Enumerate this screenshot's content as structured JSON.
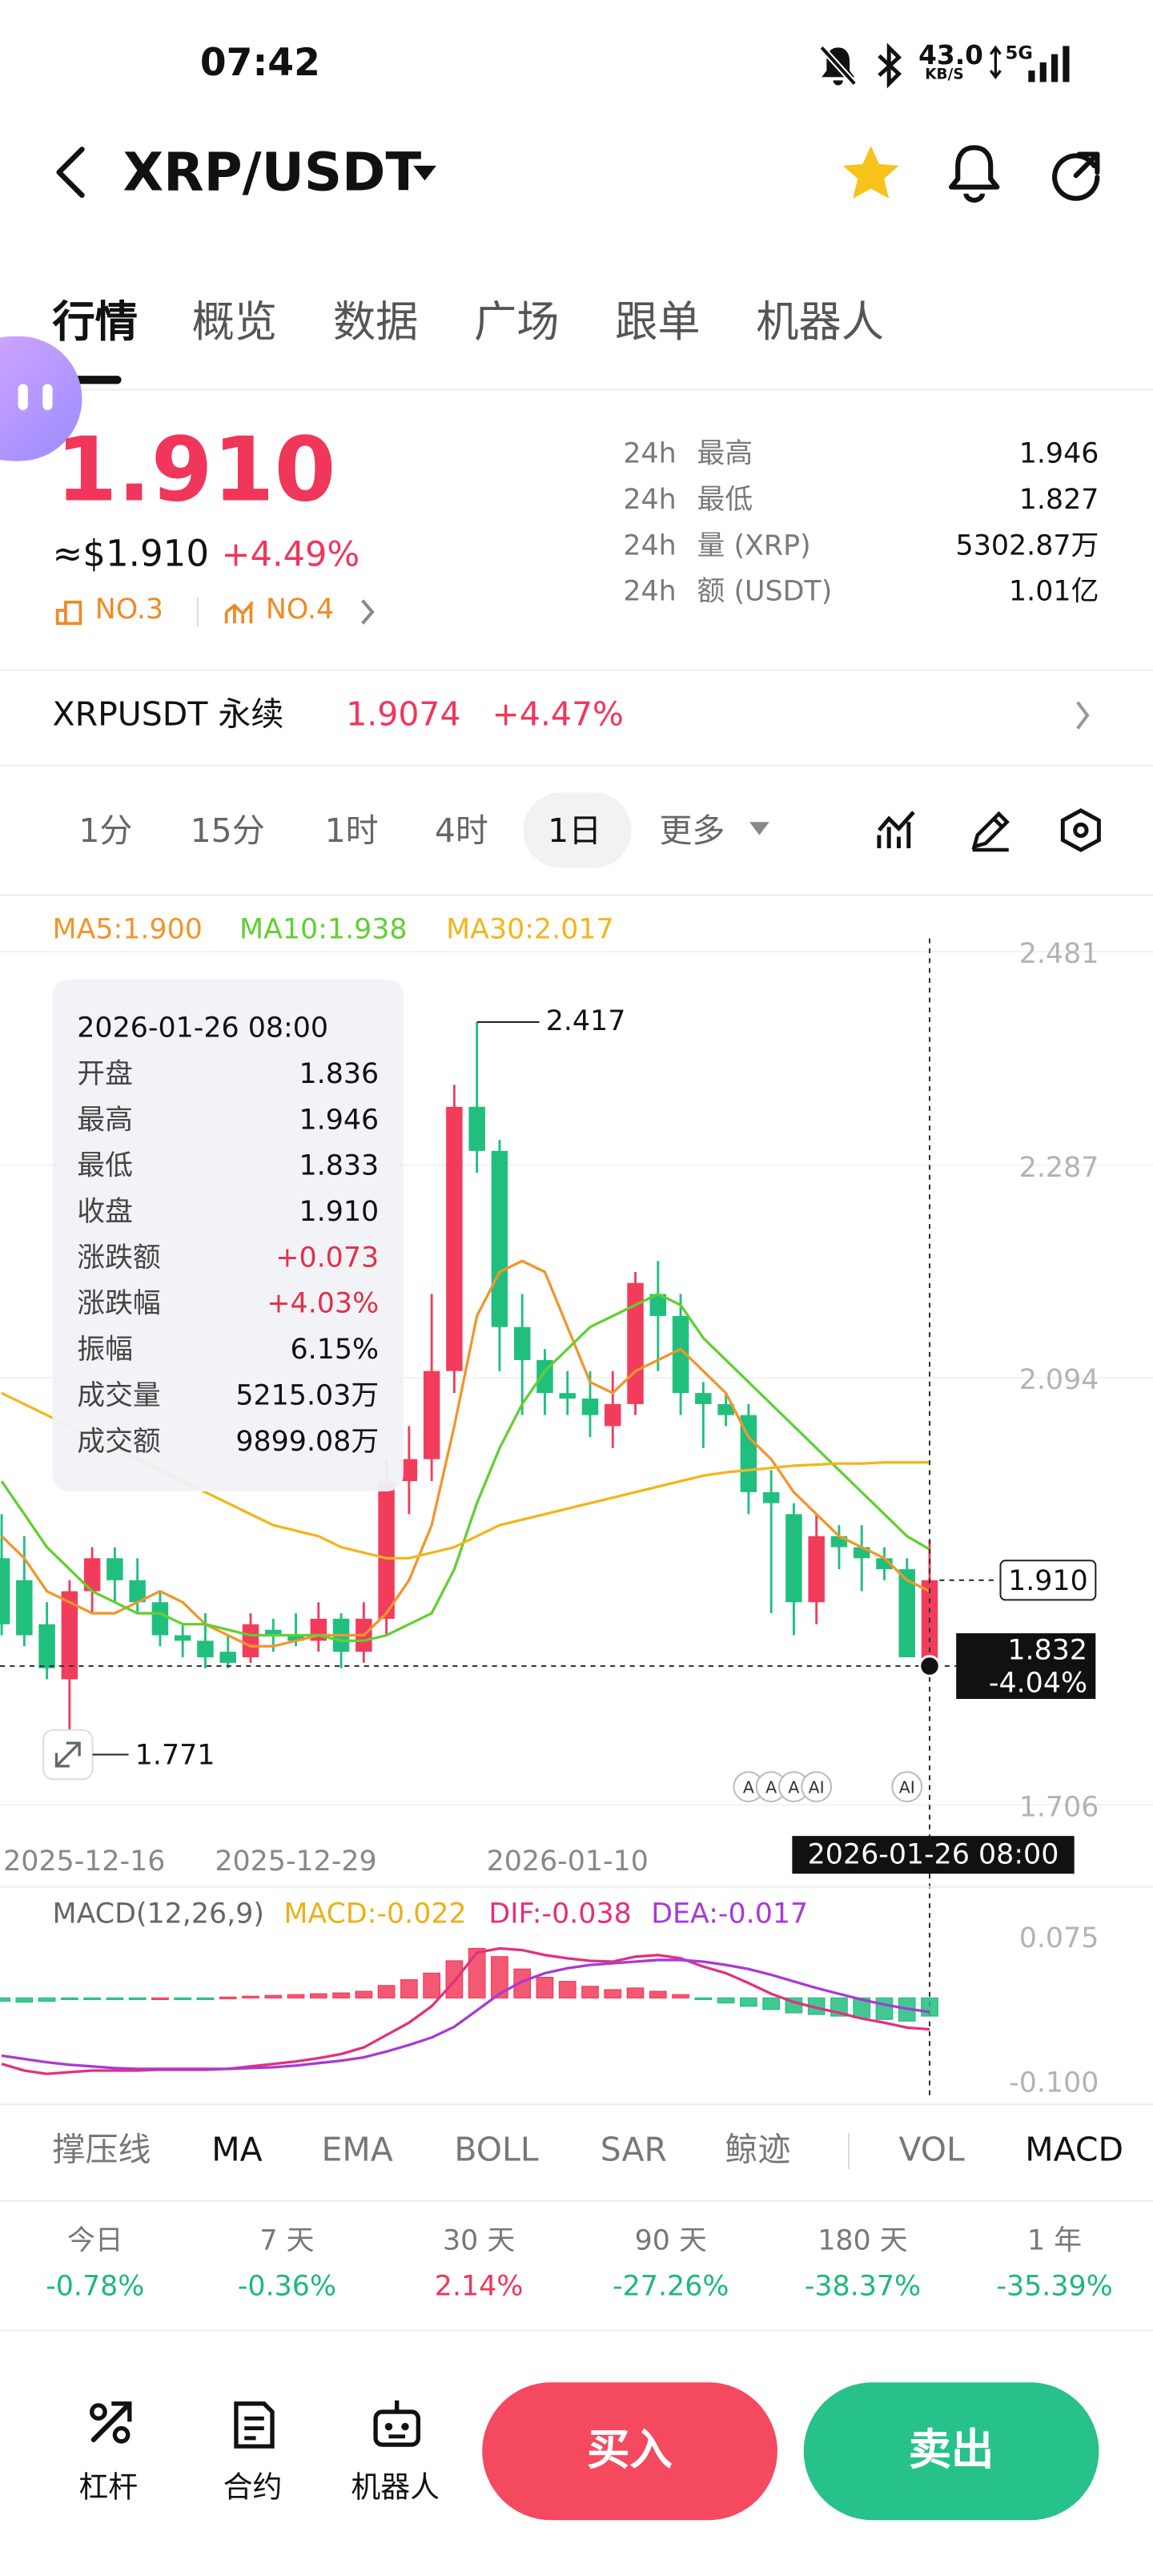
{
  "status_bar": {
    "time": "07:42",
    "speed": "43.0",
    "speed_unit": "KB/S",
    "network": "5G"
  },
  "header": {
    "pair": "XRP/USDT"
  },
  "tabs": [
    "行情",
    "概览",
    "数据",
    "广场",
    "跟单",
    "机器人"
  ],
  "price": {
    "last": "1.910",
    "usd": "≈$1.910",
    "change": "+4.49%",
    "rank1": "NO.3",
    "rank2": "NO.4",
    "stats": [
      [
        "24h",
        "最高",
        "1.946"
      ],
      [
        "24h",
        "最低",
        "1.827"
      ],
      [
        "24h",
        "量 (XRP)",
        "5302.87万"
      ],
      [
        "24h",
        "额 (USDT)",
        "1.01亿"
      ]
    ]
  },
  "perpetual": {
    "name": "XRPUSDT 永续",
    "price": "1.9074",
    "change": "+4.47%"
  },
  "intervals": [
    "1分",
    "15分",
    "1时",
    "4时",
    "1日",
    "更多"
  ],
  "chart_data": [
    {
      "type": "candlestick",
      "categories": [
        "2025-12-16",
        null,
        null,
        null,
        null,
        null,
        null,
        null,
        null,
        null,
        null,
        null,
        null,
        "2025-12-29",
        null,
        null,
        null,
        null,
        null,
        null,
        null,
        null,
        null,
        null,
        null,
        "2026-01-10",
        null,
        null,
        null,
        null,
        null,
        null,
        null,
        null,
        null,
        null,
        null,
        null,
        null,
        null,
        null,
        null
      ],
      "open": [
        1.93,
        1.91,
        1.87,
        1.82,
        1.9,
        1.93,
        1.91,
        1.89,
        1.86,
        1.855,
        1.845,
        1.84,
        1.865,
        1.86,
        1.855,
        1.875,
        1.845,
        1.875,
        2.0,
        2.02,
        2.1,
        2.34,
        2.3,
        2.14,
        2.11,
        2.08,
        2.075,
        2.05,
        2.07,
        2.17,
        2.15,
        2.08,
        2.07,
        2.06,
        1.99,
        1.97,
        1.89,
        1.95,
        1.94,
        1.93,
        1.92,
        1.836
      ],
      "high": [
        1.97,
        1.95,
        1.89,
        1.91,
        1.94,
        1.94,
        1.93,
        1.9,
        1.87,
        1.88,
        1.86,
        1.88,
        1.875,
        1.88,
        1.89,
        1.88,
        1.89,
        2.02,
        2.05,
        2.17,
        2.36,
        2.417,
        2.31,
        2.17,
        2.12,
        2.1,
        2.1,
        2.1,
        2.19,
        2.2,
        2.17,
        2.09,
        2.08,
        2.07,
        2.01,
        1.98,
        1.97,
        1.96,
        1.96,
        1.94,
        1.93,
        1.946
      ],
      "low": [
        1.86,
        1.85,
        1.82,
        1.771,
        1.88,
        1.89,
        1.88,
        1.85,
        1.84,
        1.83,
        1.83,
        1.835,
        1.845,
        1.85,
        1.845,
        1.83,
        1.835,
        1.86,
        1.97,
        2.0,
        2.08,
        2.28,
        2.1,
        2.06,
        2.06,
        2.06,
        2.04,
        2.03,
        2.06,
        2.1,
        2.06,
        2.03,
        2.05,
        1.97,
        1.88,
        1.86,
        1.87,
        1.92,
        1.9,
        1.91,
        1.84,
        1.833
      ],
      "close": [
        1.87,
        1.86,
        1.83,
        1.9,
        1.93,
        1.91,
        1.89,
        1.86,
        1.855,
        1.84,
        1.835,
        1.87,
        1.86,
        1.855,
        1.875,
        1.845,
        1.875,
        2.0,
        2.02,
        2.1,
        2.34,
        2.3,
        2.14,
        2.11,
        2.08,
        2.075,
        2.06,
        2.07,
        2.18,
        2.15,
        2.08,
        2.07,
        2.06,
        1.99,
        1.98,
        1.89,
        1.95,
        1.94,
        1.93,
        1.92,
        1.84,
        1.91
      ],
      "up_color": "#f23c5b",
      "down_color": "#20bf7e",
      "series": [
        {
          "name": "MA5:1.900",
          "color": "#f0962c",
          "values": [
            1.95,
            1.93,
            1.9,
            1.89,
            1.88,
            1.88,
            1.89,
            1.9,
            1.89,
            1.87,
            1.86,
            1.85,
            1.85,
            1.855,
            1.86,
            1.86,
            1.86,
            1.88,
            1.91,
            1.96,
            2.05,
            2.15,
            2.19,
            2.2,
            2.19,
            2.14,
            2.09,
            2.08,
            2.1,
            2.11,
            2.12,
            2.1,
            2.08,
            2.04,
            2.02,
            1.99,
            1.97,
            1.95,
            1.94,
            1.93,
            1.91,
            1.9
          ]
        },
        {
          "name": "MA10:1.938",
          "color": "#62cf34",
          "values": [
            2.0,
            1.97,
            1.94,
            1.92,
            1.9,
            1.89,
            1.88,
            1.88,
            1.87,
            1.87,
            1.865,
            1.86,
            1.86,
            1.86,
            1.86,
            1.855,
            1.855,
            1.86,
            1.87,
            1.88,
            1.92,
            1.98,
            2.03,
            2.07,
            2.1,
            2.12,
            2.14,
            2.15,
            2.16,
            2.17,
            2.16,
            2.13,
            2.11,
            2.09,
            2.07,
            2.05,
            2.03,
            2.01,
            1.99,
            1.97,
            1.95,
            1.938
          ]
        },
        {
          "name": "MA30:2.017",
          "color": "#f2b61c",
          "values": [
            2.08,
            2.07,
            2.06,
            2.05,
            2.04,
            2.03,
            2.02,
            2.01,
            2.0,
            1.99,
            1.98,
            1.97,
            1.96,
            1.955,
            1.95,
            1.94,
            1.935,
            1.93,
            1.93,
            1.935,
            1.94,
            1.95,
            1.96,
            1.965,
            1.97,
            1.975,
            1.98,
            1.985,
            1.99,
            1.995,
            2.0,
            2.005,
            2.008,
            2.01,
            2.012,
            2.014,
            2.015,
            2.016,
            2.016,
            2.017,
            2.017,
            2.017
          ]
        }
      ],
      "ylim": [
        1.706,
        2.481
      ],
      "yticks": [
        2.481,
        2.287,
        2.094,
        1.706
      ],
      "grid": true,
      "high_label": 2.417,
      "low_label": 1.771,
      "last_price": {
        "value": 1.91,
        "label": "1.910"
      },
      "crosshair": {
        "price": 1.832,
        "change": "-4.04%",
        "time": "2026-01-26 08:00"
      },
      "marker_labels": [
        null,
        null,
        null,
        null,
        null,
        null,
        null,
        null,
        null,
        null,
        null,
        null,
        null,
        null,
        null,
        null,
        null,
        null,
        null,
        null,
        null,
        null,
        null,
        null,
        null,
        null,
        null,
        null,
        null,
        null,
        null,
        null,
        null,
        "A",
        "A",
        "A",
        "AI",
        null,
        null,
        null,
        "AI",
        null
      ],
      "tooltip": {
        "time": "2026-01-26 08:00",
        "rows": [
          [
            "开盘",
            "1.836"
          ],
          [
            "最高",
            "1.946"
          ],
          [
            "最低",
            "1.833"
          ],
          [
            "收盘",
            "1.910"
          ],
          [
            "涨跌额",
            "+0.073"
          ],
          [
            "涨跌幅",
            "+4.03%"
          ],
          [
            "振幅",
            "6.15%"
          ],
          [
            "成交量",
            "5215.03万"
          ],
          [
            "成交额",
            "9899.08万"
          ]
        ]
      }
    },
    {
      "type": "macd",
      "title": "MACD(12,26,9)",
      "up_color": "#f23c5b",
      "down_color": "#20bf7e",
      "series": [
        {
          "name": "MACD:-0.022",
          "color": "#e9b11a",
          "type": "bar",
          "values": [
            -0.004,
            -0.005,
            -0.004,
            -0.002,
            -0.001,
            -0.001,
            -0.001,
            0,
            -0.001,
            -0.001,
            0.001,
            0.002,
            0.003,
            0.004,
            0.005,
            0.006,
            0.008,
            0.015,
            0.022,
            0.03,
            0.045,
            0.06,
            0.05,
            0.035,
            0.025,
            0.02,
            0.014,
            0.01,
            0.012,
            0.008,
            0.004,
            -0.002,
            -0.006,
            -0.01,
            -0.014,
            -0.018,
            -0.02,
            -0.022,
            -0.024,
            -0.026,
            -0.028,
            -0.022
          ]
        },
        {
          "name": "DIF:-0.038",
          "color": "#e2307f",
          "values": [
            -0.08,
            -0.088,
            -0.092,
            -0.09,
            -0.088,
            -0.088,
            -0.088,
            -0.087,
            -0.087,
            -0.087,
            -0.086,
            -0.083,
            -0.08,
            -0.077,
            -0.073,
            -0.068,
            -0.06,
            -0.045,
            -0.03,
            -0.01,
            0.02,
            0.055,
            0.06,
            0.058,
            0.052,
            0.048,
            0.045,
            0.044,
            0.05,
            0.052,
            0.048,
            0.038,
            0.03,
            0.018,
            0.005,
            -0.005,
            -0.012,
            -0.018,
            -0.025,
            -0.03,
            -0.036,
            -0.038
          ]
        },
        {
          "name": "DEA:-0.017",
          "color": "#a83ad3",
          "values": [
            -0.07,
            -0.074,
            -0.078,
            -0.081,
            -0.083,
            -0.085,
            -0.086,
            -0.086,
            -0.086,
            -0.086,
            -0.086,
            -0.085,
            -0.084,
            -0.082,
            -0.079,
            -0.076,
            -0.072,
            -0.065,
            -0.057,
            -0.048,
            -0.035,
            -0.015,
            0.005,
            0.02,
            0.03,
            0.036,
            0.04,
            0.042,
            0.044,
            0.046,
            0.046,
            0.044,
            0.04,
            0.035,
            0.028,
            0.02,
            0.012,
            0.005,
            -0.002,
            -0.008,
            -0.013,
            -0.017
          ]
        }
      ],
      "ylim": [
        -0.1,
        0.075
      ],
      "yticks": [
        0.075,
        {
          "value": -0.1,
          "label": "-0.100"
        }
      ]
    }
  ],
  "indicators": [
    "撑压线",
    "MA",
    "EMA",
    "BOLL",
    "SAR",
    "鲸迹",
    "VOL",
    "MACD"
  ],
  "periods": [
    {
      "label": "今日",
      "value": "-0.78%"
    },
    {
      "label": "7 天",
      "value": "-0.36%"
    },
    {
      "label": "30 天",
      "value": "2.14%"
    },
    {
      "label": "90 天",
      "value": "-27.26%"
    },
    {
      "label": "180 天",
      "value": "-38.37%"
    },
    {
      "label": "1 年",
      "value": "-35.39%"
    }
  ],
  "bottom_bar": {
    "tools": [
      "杠杆",
      "合约",
      "机器人"
    ],
    "buy": "买入",
    "sell": "卖出"
  }
}
